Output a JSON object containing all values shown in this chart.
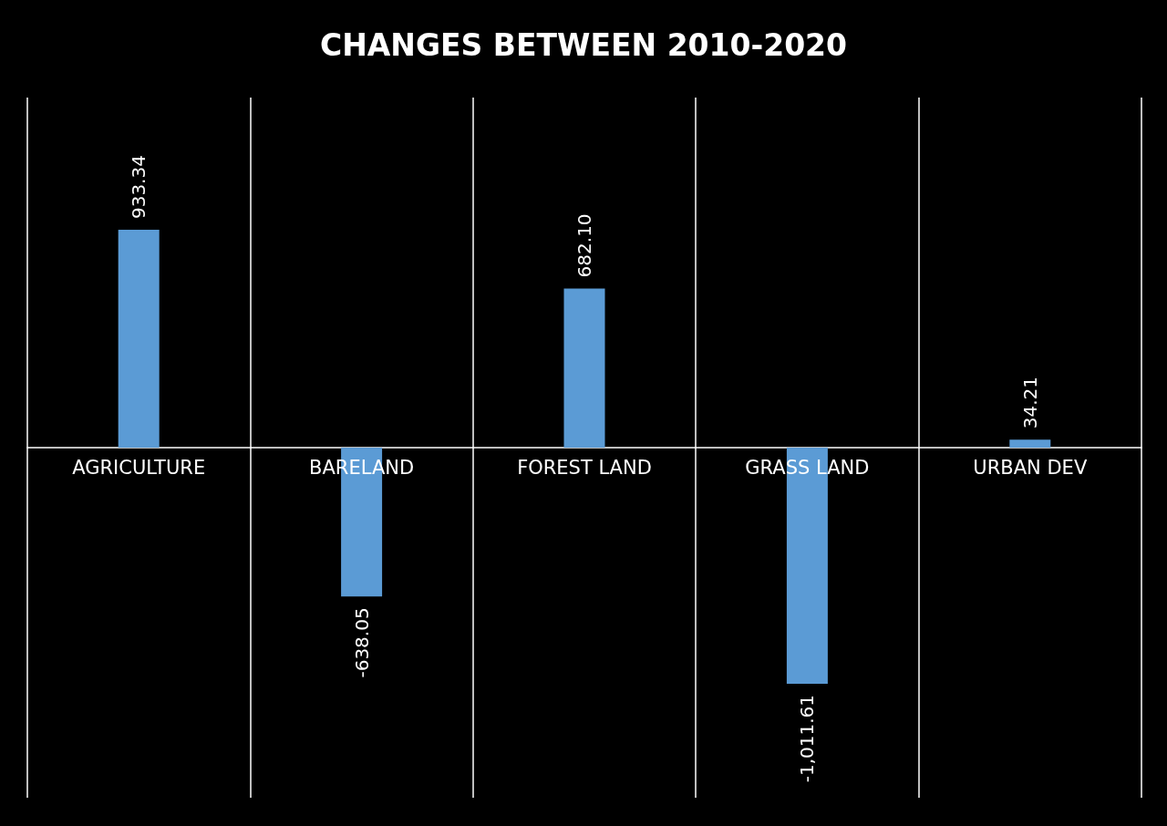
{
  "chart_data": {
    "type": "bar",
    "title": "CHANGES BETWEEN 2010-2020",
    "categories": [
      "AGRICULTURE",
      "BARELAND",
      "FOREST LAND",
      "GRASS LAND",
      "URBAN DEV"
    ],
    "values": [
      933.34,
      -638.05,
      682.1,
      -1011.61,
      34.21
    ],
    "value_labels": [
      "933.34",
      "-638.05",
      "682.10",
      "-1,011.61",
      "34.21"
    ],
    "color": "#5b9bd5",
    "ylim": [
      -1500,
      1500
    ],
    "grid": "x"
  }
}
